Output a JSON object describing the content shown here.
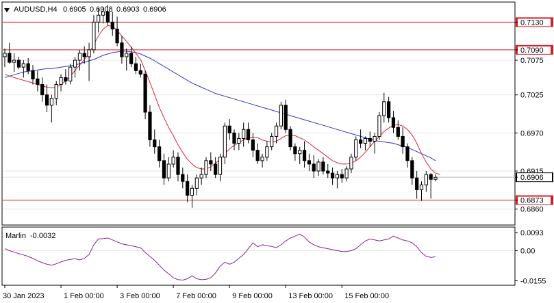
{
  "header": {
    "symbol": "AUDUSD,H4",
    "open": "0.6905",
    "high": "0.6908",
    "low": "0.6903",
    "close": "0.6906",
    "dropdown_icon": "triangle-down-icon"
  },
  "indicator": {
    "name": "Marlin",
    "value": "-0.0032"
  },
  "colors": {
    "bull": "#ffffff",
    "bear": "#000000",
    "ma_fast": "#d6252e",
    "ma_slow": "#2a35c8",
    "level": "#d81f26",
    "marlin": "#8c1c94",
    "current_price": "#000000"
  },
  "chart_data": [
    {
      "type": "candlestick",
      "title": "AUDUSD,H4",
      "ylim": [
        0.6838,
        0.7158
      ],
      "y_ticks": [
        "0.7130",
        "0.7090",
        "0.7075",
        "0.7025",
        "0.6970",
        "0.6915",
        "0.6906",
        "0.6873",
        "0.6860"
      ],
      "x_ticks": [
        "30 Jan 2023",
        "1 Feb 00:00",
        "3 Feb 00:00",
        "7 Feb 00:00",
        "9 Feb 00:00",
        "13 Feb 00:00",
        "15 Feb 00:00"
      ],
      "levels": [
        {
          "label": "0.7130",
          "value": 0.713
        },
        {
          "label": "0.7090",
          "value": 0.709
        },
        {
          "label": "0.6873",
          "value": 0.6873
        }
      ],
      "current_price": {
        "label": "0.6906",
        "value": 0.6906
      },
      "candles": [
        [
          0.708,
          0.7092,
          0.7065,
          0.7085
        ],
        [
          0.7085,
          0.71,
          0.707,
          0.7072
        ],
        [
          0.7072,
          0.7085,
          0.7058,
          0.7075
        ],
        [
          0.7075,
          0.708,
          0.7062,
          0.7065
        ],
        [
          0.7065,
          0.7075,
          0.705,
          0.707
        ],
        [
          0.707,
          0.7078,
          0.7055,
          0.706
        ],
        [
          0.706,
          0.7068,
          0.704,
          0.7048
        ],
        [
          0.7048,
          0.706,
          0.703,
          0.704
        ],
        [
          0.704,
          0.705,
          0.7015,
          0.7025
        ],
        [
          0.7025,
          0.704,
          0.7,
          0.701
        ],
        [
          0.701,
          0.7025,
          0.6985,
          0.702
        ],
        [
          0.702,
          0.7045,
          0.701,
          0.704
        ],
        [
          0.704,
          0.7055,
          0.703,
          0.705
        ],
        [
          0.705,
          0.7062,
          0.704,
          0.7045
        ],
        [
          0.7045,
          0.707,
          0.704,
          0.7065
        ],
        [
          0.7065,
          0.708,
          0.705,
          0.7075
        ],
        [
          0.7075,
          0.709,
          0.706,
          0.7085
        ],
        [
          0.7085,
          0.7095,
          0.707,
          0.708
        ],
        [
          0.708,
          0.71,
          0.7045,
          0.709
        ],
        [
          0.709,
          0.714,
          0.7085,
          0.713
        ],
        [
          0.713,
          0.715,
          0.7115,
          0.714
        ],
        [
          0.714,
          0.7152,
          0.7128,
          0.7145
        ],
        [
          0.7145,
          0.7155,
          0.7125,
          0.713
        ],
        [
          0.713,
          0.7145,
          0.711,
          0.712
        ],
        [
          0.712,
          0.7138,
          0.7095,
          0.71
        ],
        [
          0.71,
          0.711,
          0.707,
          0.708
        ],
        [
          0.708,
          0.7092,
          0.706,
          0.7085
        ],
        [
          0.7085,
          0.7095,
          0.7065,
          0.707
        ],
        [
          0.707,
          0.708,
          0.7055,
          0.706
        ],
        [
          0.706,
          0.707,
          0.705,
          0.7055
        ],
        [
          0.7055,
          0.706,
          0.699,
          0.7
        ],
        [
          0.7,
          0.701,
          0.695,
          0.696
        ],
        [
          0.696,
          0.6975,
          0.694,
          0.695
        ],
        [
          0.695,
          0.696,
          0.692,
          0.693
        ],
        [
          0.693,
          0.694,
          0.6895,
          0.6905
        ],
        [
          0.6905,
          0.6935,
          0.69,
          0.6925
        ],
        [
          0.6925,
          0.6945,
          0.692,
          0.6935
        ],
        [
          0.6935,
          0.6942,
          0.69,
          0.691
        ],
        [
          0.691,
          0.692,
          0.689,
          0.69
        ],
        [
          0.69,
          0.691,
          0.687,
          0.688
        ],
        [
          0.688,
          0.6895,
          0.6862,
          0.689
        ],
        [
          0.689,
          0.691,
          0.688,
          0.6905
        ],
        [
          0.6905,
          0.692,
          0.6895,
          0.691
        ],
        [
          0.691,
          0.6935,
          0.6905,
          0.693
        ],
        [
          0.693,
          0.6942,
          0.6915,
          0.6925
        ],
        [
          0.6925,
          0.6935,
          0.6905,
          0.691
        ],
        [
          0.691,
          0.694,
          0.69,
          0.6935
        ],
        [
          0.6935,
          0.6985,
          0.6925,
          0.698
        ],
        [
          0.698,
          0.699,
          0.696,
          0.697
        ],
        [
          0.697,
          0.6975,
          0.6945,
          0.6955
        ],
        [
          0.6955,
          0.697,
          0.6945,
          0.6962
        ],
        [
          0.6962,
          0.6985,
          0.695,
          0.6975
        ],
        [
          0.6975,
          0.6985,
          0.6955,
          0.696
        ],
        [
          0.696,
          0.697,
          0.6935,
          0.6945
        ],
        [
          0.6945,
          0.6955,
          0.6925,
          0.693
        ],
        [
          0.693,
          0.694,
          0.692,
          0.6935
        ],
        [
          0.6935,
          0.6958,
          0.693,
          0.695
        ],
        [
          0.695,
          0.697,
          0.6945,
          0.6965
        ],
        [
          0.6965,
          0.6985,
          0.6955,
          0.698
        ],
        [
          0.698,
          0.7015,
          0.6975,
          0.701
        ],
        [
          0.701,
          0.7018,
          0.697,
          0.6975
        ],
        [
          0.6975,
          0.698,
          0.6945,
          0.695
        ],
        [
          0.695,
          0.6955,
          0.693,
          0.694
        ],
        [
          0.694,
          0.695,
          0.6925,
          0.6945
        ],
        [
          0.6945,
          0.6958,
          0.692,
          0.693
        ],
        [
          0.693,
          0.694,
          0.6915,
          0.6925
        ],
        [
          0.6925,
          0.6938,
          0.6905,
          0.6915
        ],
        [
          0.6915,
          0.6932,
          0.6908,
          0.6928
        ],
        [
          0.6928,
          0.6935,
          0.691,
          0.6915
        ],
        [
          0.6915,
          0.6925,
          0.6905,
          0.6912
        ],
        [
          0.6912,
          0.692,
          0.6895,
          0.6905
        ],
        [
          0.6905,
          0.6915,
          0.689,
          0.691
        ],
        [
          0.691,
          0.6918,
          0.6898,
          0.6905
        ],
        [
          0.6905,
          0.6922,
          0.69,
          0.6918
        ],
        [
          0.6918,
          0.694,
          0.6912,
          0.6935
        ],
        [
          0.6935,
          0.6965,
          0.693,
          0.696
        ],
        [
          0.696,
          0.6975,
          0.6948,
          0.6955
        ],
        [
          0.6955,
          0.6965,
          0.6945,
          0.6962
        ],
        [
          0.6962,
          0.6972,
          0.695,
          0.6958
        ],
        [
          0.6958,
          0.697,
          0.694,
          0.6965
        ],
        [
          0.6965,
          0.7,
          0.696,
          0.6995
        ],
        [
          0.6995,
          0.7028,
          0.6985,
          0.7015
        ],
        [
          0.7015,
          0.7022,
          0.6985,
          0.6992
        ],
        [
          0.6992,
          0.7002,
          0.697,
          0.6978
        ],
        [
          0.6978,
          0.6988,
          0.696,
          0.6965
        ],
        [
          0.6965,
          0.6978,
          0.694,
          0.695
        ],
        [
          0.695,
          0.6955,
          0.692,
          0.693
        ],
        [
          0.693,
          0.6935,
          0.6895,
          0.6905
        ],
        [
          0.6905,
          0.6915,
          0.6875,
          0.6888
        ],
        [
          0.6888,
          0.69,
          0.6872,
          0.6895
        ],
        [
          0.6895,
          0.6915,
          0.6885,
          0.691
        ],
        [
          0.691,
          0.6912,
          0.6875,
          0.6903
        ],
        [
          0.6903,
          0.691,
          0.69,
          0.6906
        ]
      ],
      "ma_fast": [
        0.7055,
        0.7052,
        0.705,
        0.7048,
        0.7046,
        0.7044,
        0.7042,
        0.704,
        0.7038,
        0.7036,
        0.7035,
        0.7036,
        0.704,
        0.7045,
        0.7052,
        0.706,
        0.7068,
        0.7076,
        0.7085,
        0.7098,
        0.711,
        0.712,
        0.7125,
        0.7124,
        0.7118,
        0.711,
        0.7102,
        0.7094,
        0.7085,
        0.7076,
        0.706,
        0.7043,
        0.7025,
        0.7007,
        0.6992,
        0.6978,
        0.6966,
        0.6953,
        0.6942,
        0.6932,
        0.6925,
        0.692,
        0.6918,
        0.6918,
        0.6921,
        0.6926,
        0.6932,
        0.694,
        0.6947,
        0.6952,
        0.6956,
        0.696,
        0.6963,
        0.6964,
        0.6963,
        0.696,
        0.6958,
        0.6957,
        0.6958,
        0.6962,
        0.6966,
        0.6967,
        0.6966,
        0.6963,
        0.696,
        0.6955,
        0.695,
        0.6945,
        0.694,
        0.6935,
        0.693,
        0.6927,
        0.6925,
        0.6925,
        0.6926,
        0.693,
        0.6935,
        0.6942,
        0.695,
        0.6958,
        0.6965,
        0.6972,
        0.6977,
        0.6981,
        0.6982,
        0.698,
        0.6975,
        0.6967,
        0.6955,
        0.694,
        0.6928,
        0.6918,
        0.6912,
        0.691
      ],
      "ma_slow": [
        0.705,
        0.7052,
        0.7054,
        0.7056,
        0.7058,
        0.7059,
        0.706,
        0.7061,
        0.7062,
        0.7063,
        0.7063,
        0.7064,
        0.7065,
        0.7066,
        0.7067,
        0.7068,
        0.707,
        0.7072,
        0.7074,
        0.7076,
        0.7079,
        0.7082,
        0.7084,
        0.7086,
        0.7087,
        0.7088,
        0.7088,
        0.7087,
        0.7086,
        0.7084,
        0.7081,
        0.7078,
        0.7074,
        0.707,
        0.7066,
        0.7062,
        0.7058,
        0.7054,
        0.705,
        0.7046,
        0.7042,
        0.7039,
        0.7036,
        0.7033,
        0.703,
        0.7027,
        0.7025,
        0.7023,
        0.7021,
        0.7019,
        0.7017,
        0.7015,
        0.7013,
        0.7011,
        0.7009,
        0.7007,
        0.7005,
        0.7003,
        0.7001,
        0.6999,
        0.6997,
        0.6995,
        0.6993,
        0.6991,
        0.6989,
        0.6987,
        0.6985,
        0.6983,
        0.6981,
        0.6979,
        0.6977,
        0.6975,
        0.6973,
        0.6971,
        0.6969,
        0.6967,
        0.6965,
        0.6963,
        0.6961,
        0.6959,
        0.6958,
        0.6957,
        0.6956,
        0.6955,
        0.6953,
        0.6951,
        0.6949,
        0.6946,
        0.6943,
        0.694,
        0.6937,
        0.6934,
        0.693
      ]
    },
    {
      "type": "line",
      "title": "Marlin -0.0032",
      "ylim": [
        -0.0175,
        0.0118
      ],
      "y_ticks": [
        "0.0093",
        "0.00",
        "-0.0155"
      ],
      "series": [
        {
          "name": "Marlin",
          "values": [
            0.001,
            0.0,
            -0.0008,
            -0.0015,
            -0.0022,
            -0.003,
            -0.004,
            -0.0052,
            -0.0062,
            -0.007,
            -0.0075,
            -0.0068,
            -0.0058,
            -0.005,
            -0.0045,
            -0.0042,
            -0.0048,
            -0.004,
            -0.002,
            0.003,
            0.006,
            0.0062,
            0.0065,
            0.0055,
            0.0045,
            0.0035,
            0.003,
            0.0025,
            0.002,
            0.0015,
            -0.001,
            -0.003,
            -0.005,
            -0.0075,
            -0.01,
            -0.012,
            -0.014,
            -0.015,
            -0.0152,
            -0.0145,
            -0.013,
            -0.0145,
            -0.015,
            -0.0148,
            -0.014,
            -0.0115,
            -0.008,
            -0.006,
            -0.007,
            -0.006,
            -0.004,
            -0.002,
            0.001,
            0.004,
            0.002,
            0.003,
            0.0025,
            0.0022,
            0.0015,
            0.003,
            0.005,
            0.0065,
            0.0075,
            0.0085,
            0.007,
            0.0045,
            0.003,
            0.002,
            0.0015,
            0.001,
            0.0005,
            0.0,
            -0.0005,
            -0.0005,
            0.0,
            0.001,
            0.003,
            0.005,
            0.006,
            0.0055,
            0.005,
            0.0055,
            0.006,
            0.0075,
            0.0065,
            0.0055,
            0.005,
            0.004,
            0.002,
            -0.001,
            -0.003,
            -0.0035,
            -0.0032
          ]
        }
      ]
    }
  ]
}
